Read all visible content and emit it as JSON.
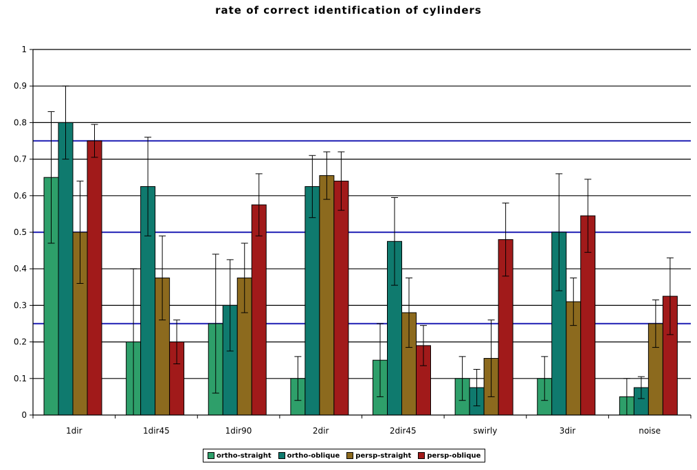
{
  "chart_data": {
    "type": "bar",
    "title": "rate of correct identification of cylinders",
    "xlabel": "",
    "ylabel": "",
    "ylim": [
      0,
      1
    ],
    "yticks": [
      "0",
      "0.1",
      "0.2",
      "0.3",
      "0.4",
      "0.5",
      "0.6",
      "0.7",
      "0.8",
      "0.9",
      "1"
    ],
    "grid": true,
    "legend_position": "bottom",
    "reference_lines": [
      0.25,
      0.5,
      0.75
    ],
    "categories": [
      "1dir",
      "1dir45",
      "1dir90",
      "2dir",
      "2dir45",
      "swirly",
      "3dir",
      "noise"
    ],
    "series": [
      {
        "name": "ortho-straight",
        "color": "#2e9f6a",
        "values": [
          0.65,
          0.2,
          0.25,
          0.1,
          0.15,
          0.1,
          0.1,
          0.05
        ],
        "errors": [
          0.18,
          0.2,
          0.19,
          0.06,
          0.1,
          0.06,
          0.06,
          0.05
        ]
      },
      {
        "name": "ortho-oblique",
        "color": "#0f7a6e",
        "values": [
          0.8,
          0.625,
          0.3,
          0.625,
          0.475,
          0.075,
          0.5,
          0.075
        ],
        "errors": [
          0.1,
          0.135,
          0.125,
          0.085,
          0.12,
          0.05,
          0.16,
          0.03
        ]
      },
      {
        "name": "persp-straight",
        "color": "#8c6a1e",
        "values": [
          0.5,
          0.375,
          0.375,
          0.655,
          0.28,
          0.155,
          0.31,
          0.25
        ],
        "errors": [
          0.14,
          0.115,
          0.095,
          0.065,
          0.095,
          0.105,
          0.065,
          0.065
        ]
      },
      {
        "name": "persp-oblique",
        "color": "#a11a1a",
        "values": [
          0.75,
          0.2,
          0.575,
          0.64,
          0.19,
          0.48,
          0.545,
          0.325
        ],
        "errors": [
          0.045,
          0.06,
          0.085,
          0.08,
          0.055,
          0.1,
          0.1,
          0.105
        ]
      }
    ]
  }
}
